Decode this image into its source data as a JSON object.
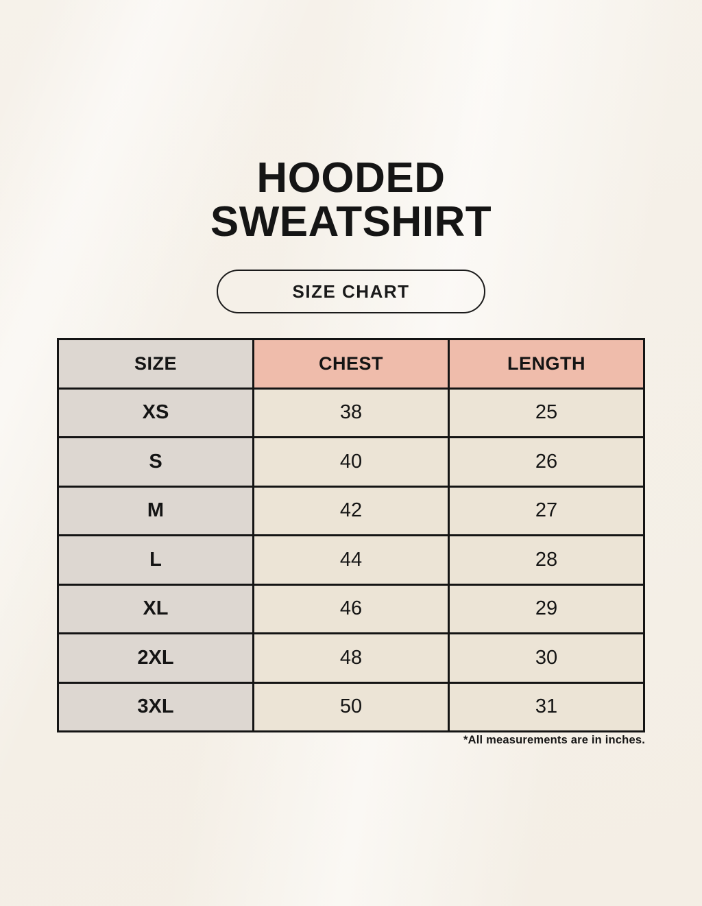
{
  "page": {
    "title_line1": "HOODED",
    "title_line2": "SWEATSHIRT",
    "size_chart_button_label": "SIZE CHART",
    "footnote": "*All measurements are in inches."
  },
  "chart_data": {
    "type": "table",
    "title": "HOODED SWEATSHIRT SIZE CHART",
    "units": "inches",
    "columns": [
      "SIZE",
      "CHEST",
      "LENGTH"
    ],
    "rows": [
      {
        "size": "XS",
        "chest": 38,
        "length": 25
      },
      {
        "size": "S",
        "chest": 40,
        "length": 26
      },
      {
        "size": "M",
        "chest": 42,
        "length": 27
      },
      {
        "size": "L",
        "chest": 44,
        "length": 28
      },
      {
        "size": "XL",
        "chest": 46,
        "length": 29
      },
      {
        "size": "2XL",
        "chest": 48,
        "length": 30
      },
      {
        "size": "3XL",
        "chest": 50,
        "length": 31
      }
    ]
  },
  "colors": {
    "background": "#f7f3ec",
    "cell-cream": "#ece4d6",
    "cell-gray": "#ddd7d1",
    "header-pink": "#efbcab",
    "ink": "#141414"
  }
}
